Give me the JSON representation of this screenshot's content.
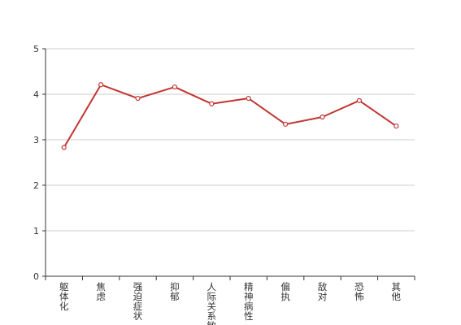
{
  "chart_data": {
    "type": "line",
    "categories": [
      "躯体化",
      "焦虑",
      "强迫症状",
      "抑郁",
      "人际关系敏感",
      "精神病性",
      "偏执",
      "敌对",
      "恐怖",
      "其他"
    ],
    "series": [
      {
        "values": [
          2.83,
          4.21,
          3.91,
          4.16,
          3.79,
          3.91,
          3.34,
          3.5,
          3.86,
          3.3
        ]
      }
    ],
    "yticks": [
      "0",
      "1",
      "2",
      "3",
      "4",
      "5"
    ],
    "ylim": [
      0,
      5
    ],
    "grid": true,
    "colors": {
      "line": "#c23531",
      "grid": "#cccccc",
      "axis": "#333333"
    }
  }
}
